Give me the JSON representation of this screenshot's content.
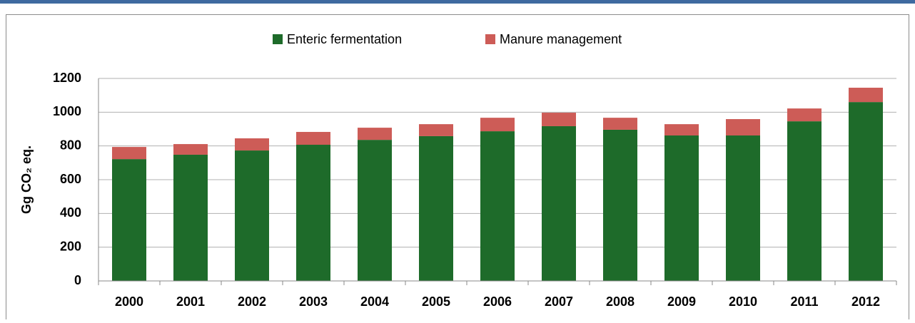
{
  "chart_data": {
    "type": "stacked-bar",
    "y_label": "Gg CO₂ eq.",
    "categories": [
      "2000",
      "2001",
      "2002",
      "2003",
      "2004",
      "2005",
      "2006",
      "2007",
      "2008",
      "2009",
      "2010",
      "2011",
      "2012"
    ],
    "series": [
      {
        "name": "Enteric fermentation",
        "color": "#1e6b2a",
        "values": [
          722,
          748,
          773,
          807,
          836,
          858,
          887,
          917,
          896,
          862,
          862,
          946,
          1060
        ]
      },
      {
        "name": "Manure management",
        "color": "#cd5c57",
        "values": [
          72,
          63,
          72,
          76,
          72,
          71,
          80,
          80,
          71,
          67,
          97,
          76,
          85
        ]
      }
    ],
    "ylim": [
      0,
      1200
    ],
    "yticks": [
      0,
      200,
      400,
      600,
      800,
      1000,
      1200
    ],
    "grid": true,
    "legend": "top"
  }
}
